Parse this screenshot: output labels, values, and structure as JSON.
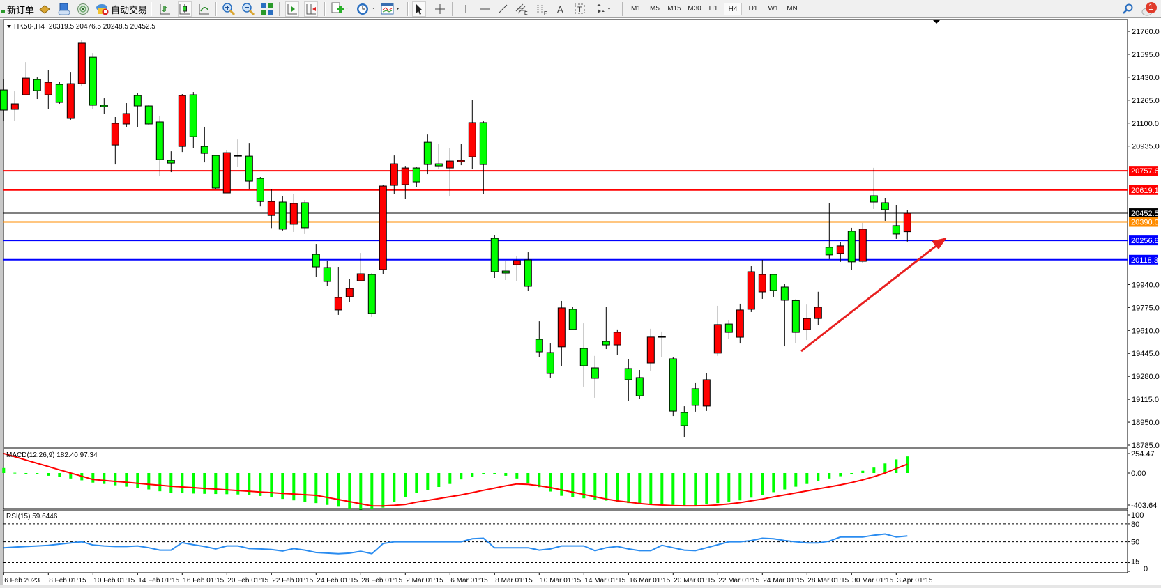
{
  "toolbar": {
    "new_order_label": "新订单",
    "auto_trading_label": "自动交易",
    "timeframes": [
      "M1",
      "M5",
      "M15",
      "M30",
      "H1",
      "H4",
      "D1",
      "W1",
      "MN"
    ],
    "active_timeframe": "H4",
    "notification_count": "1",
    "icons": [
      "new-order-icon",
      "market-watch-icon",
      "data-window-icon",
      "signals-icon",
      "auto-trading-icon",
      "bar-chart-icon",
      "candlestick-icon",
      "line-chart-icon",
      "zoom-in-icon",
      "zoom-out-icon",
      "tile-windows-icon",
      "auto-scroll-icon",
      "chart-shift-icon",
      "indicators-icon",
      "periods-icon",
      "templates-icon",
      "cursor-icon",
      "crosshair-icon",
      "vertical-line-icon",
      "horizontal-line-icon",
      "trendline-icon",
      "equidistant-channel-icon",
      "fibonacci-icon",
      "text-icon",
      "text-label-icon",
      "arrows-icon",
      "search-icon",
      "chat-icon"
    ]
  },
  "chart": {
    "symbol_header": "HK50-,H4",
    "ohlc_header": "20319.5 20476.5 20248.5 20452.5",
    "price_ticks": [
      "21760.0",
      "21595.0",
      "21430.0",
      "21265.0",
      "21100.0",
      "20935.0",
      "19940.0",
      "19775.0",
      "19610.0",
      "19445.0",
      "19280.0",
      "19115.0",
      "18950.0",
      "18785.0"
    ],
    "levels": [
      {
        "value": "20757.6",
        "color": "#ff0000"
      },
      {
        "value": "20619.1",
        "color": "#ff0000"
      },
      {
        "value": "20452.5",
        "color": "#000000"
      },
      {
        "value": "20390.0",
        "color": "#ff8c00"
      },
      {
        "value": "20256.8",
        "color": "#0000ff"
      },
      {
        "value": "20118.3",
        "color": "#0000ff"
      }
    ],
    "bull_color": "#ff0000",
    "bear_color": "#00ff00",
    "arrow_color": "#e82020"
  },
  "macd": {
    "label": "MACD(12,26,9) 182.40 97.34",
    "ticks": [
      "254.47",
      "0.00",
      "-403.64"
    ],
    "bar_color": "#00ff00",
    "signal_color": "#ff0000"
  },
  "rsi": {
    "label": "RSI(15) 59.6446",
    "ticks": [
      "100",
      "80",
      "50",
      "15",
      "0"
    ],
    "line_color": "#2a8cf0"
  },
  "date_labels": [
    "6 Feb 2023",
    "8 Feb 01:15",
    "10 Feb 01:15",
    "14 Feb 01:15",
    "16 Feb 01:15",
    "20 Feb 01:15",
    "22 Feb 01:15",
    "24 Feb 01:15",
    "28 Feb 01:15",
    "2 Mar 01:15",
    "6 Mar 01:15",
    "8 Mar 01:15",
    "10 Mar 01:15",
    "14 Mar 01:15",
    "16 Mar 01:15",
    "20 Mar 01:15",
    "22 Mar 01:15",
    "24 Mar 01:15",
    "28 Mar 01:15",
    "30 Mar 01:15",
    "3 Apr 01:15"
  ],
  "chart_data": {
    "type": "candlestick",
    "symbol": "HK50-",
    "timeframe": "H4",
    "ylim": [
      18785,
      21760
    ],
    "candles_ohlc": [
      [
        21339,
        21419,
        21119,
        21194
      ],
      [
        21199,
        21329,
        21119,
        21239
      ],
      [
        21304,
        21539,
        21299,
        21424
      ],
      [
        21414,
        21429,
        21274,
        21334
      ],
      [
        21304,
        21484,
        21204,
        21394
      ],
      [
        21379,
        21399,
        21239,
        21249
      ],
      [
        21134,
        21464,
        21124,
        21384
      ],
      [
        21384,
        21695,
        21364,
        21675
      ],
      [
        21574,
        21604,
        21204,
        21229
      ],
      [
        21229,
        21279,
        21164,
        21219
      ],
      [
        20943,
        21144,
        20803,
        21099
      ],
      [
        21094,
        21244,
        21069,
        21169
      ],
      [
        21299,
        21319,
        21069,
        21224
      ],
      [
        21224,
        21229,
        21084,
        21094
      ],
      [
        21109,
        21149,
        20723,
        20838
      ],
      [
        20833,
        20898,
        20748,
        20813
      ],
      [
        20933,
        21309,
        20893,
        21299
      ],
      [
        21304,
        21324,
        20923,
        21003
      ],
      [
        20933,
        21074,
        20818,
        20883
      ],
      [
        20868,
        20873,
        20623,
        20633
      ],
      [
        20598,
        20908,
        20598,
        20888
      ],
      [
        20868,
        20983,
        20788,
        20868
      ],
      [
        20863,
        20958,
        20623,
        20683
      ],
      [
        20703,
        20713,
        20502,
        20537
      ],
      [
        20437,
        20628,
        20346,
        20537
      ],
      [
        20533,
        20578,
        20328,
        20338
      ],
      [
        20373,
        20593,
        20318,
        20523
      ],
      [
        20528,
        20548,
        20303,
        20348
      ],
      [
        20157,
        20232,
        19997,
        20067
      ],
      [
        20062,
        20112,
        19932,
        19962
      ],
      [
        19757,
        20067,
        19722,
        19847
      ],
      [
        19852,
        19977,
        19812,
        19912
      ],
      [
        19967,
        20167,
        19962,
        20017
      ],
      [
        20012,
        20022,
        19707,
        19732
      ],
      [
        20047,
        20658,
        20017,
        20648
      ],
      [
        20653,
        20868,
        20588,
        20808
      ],
      [
        20658,
        20793,
        20553,
        20778
      ],
      [
        20778,
        20783,
        20643,
        20678
      ],
      [
        20963,
        21018,
        20733,
        20803
      ],
      [
        20808,
        20953,
        20768,
        20793
      ],
      [
        20778,
        20923,
        20573,
        20828
      ],
      [
        20823,
        20953,
        20798,
        20833
      ],
      [
        20858,
        21268,
        20768,
        21104
      ],
      [
        21104,
        21118,
        20588,
        20803
      ],
      [
        20272,
        20297,
        19987,
        20032
      ],
      [
        20037,
        20112,
        19972,
        20022
      ],
      [
        20082,
        20142,
        19962,
        20112
      ],
      [
        20117,
        20172,
        19892,
        19927
      ],
      [
        19546,
        19676,
        19416,
        19456
      ],
      [
        19451,
        19516,
        19271,
        19301
      ],
      [
        19492,
        19822,
        19356,
        19772
      ],
      [
        19762,
        19777,
        19612,
        19617
      ],
      [
        19481,
        19661,
        19206,
        19356
      ],
      [
        19341,
        19427,
        19126,
        19266
      ],
      [
        19531,
        19777,
        19476,
        19506
      ],
      [
        19506,
        19617,
        19436,
        19597
      ],
      [
        19336,
        19401,
        19101,
        19256
      ],
      [
        19271,
        19326,
        19120,
        19140
      ],
      [
        19376,
        19622,
        19316,
        19562
      ],
      [
        19566,
        19602,
        19416,
        19566
      ],
      [
        19406,
        19421,
        18995,
        19030
      ],
      [
        19020,
        19065,
        18845,
        18925
      ],
      [
        19191,
        19231,
        19026,
        19071
      ],
      [
        19066,
        19301,
        19031,
        19256
      ],
      [
        19447,
        19787,
        19427,
        19652
      ],
      [
        19656,
        19682,
        19551,
        19596
      ],
      [
        19561,
        19802,
        19516,
        19757
      ],
      [
        19762,
        20072,
        19742,
        20032
      ],
      [
        19887,
        20117,
        19837,
        20012
      ],
      [
        20012,
        20017,
        19852,
        19897
      ],
      [
        19922,
        19942,
        19496,
        19827
      ],
      [
        19825,
        19835,
        19521,
        19596
      ],
      [
        19616,
        19796,
        19541,
        19696
      ],
      [
        19696,
        19888,
        19651,
        19777
      ],
      [
        20208,
        20528,
        20123,
        20153
      ],
      [
        20163,
        20243,
        20103,
        20218
      ],
      [
        20323,
        20348,
        20043,
        20103
      ],
      [
        20107,
        20383,
        20097,
        20338
      ],
      [
        20578,
        20779,
        20483,
        20533
      ],
      [
        20528,
        20563,
        20398,
        20478
      ],
      [
        20363,
        20513,
        20268,
        20303
      ],
      [
        20319.5,
        20476.5,
        20248.5,
        20452.5
      ]
    ],
    "macd_histogram": [
      55,
      3,
      -5,
      -15,
      -30,
      -45,
      -60,
      -80,
      -105,
      -120,
      -135,
      -150,
      -165,
      -180,
      -200,
      -220,
      -222,
      -225,
      -228,
      -230,
      -232,
      -235,
      -237,
      -252,
      -268,
      -284,
      -300,
      -315,
      -330,
      -350,
      -370,
      -390,
      -403.64,
      -395,
      -380,
      -320,
      -260,
      -218,
      -185,
      -153,
      -120,
      -70,
      -40,
      -10,
      -5,
      -30,
      -60,
      -108,
      -155,
      -203,
      -250,
      -263,
      -277,
      -290,
      -303,
      -317,
      -330,
      -335,
      -340,
      -345,
      -350,
      -355,
      -360,
      -345,
      -330,
      -315,
      -300,
      -270,
      -240,
      -210,
      -180,
      -150,
      -120,
      -90,
      -60,
      -35,
      -10,
      25,
      60,
      105,
      150,
      182.4
    ],
    "macd_signal": [
      215,
      179,
      143,
      107,
      71,
      35,
      0,
      -35,
      -70,
      -81,
      -92,
      -102,
      -113,
      -124,
      -134,
      -145,
      -153,
      -161,
      -169,
      -176,
      -184,
      -192,
      -200,
      -208,
      -215,
      -223,
      -230,
      -238,
      -245,
      -268,
      -291,
      -314,
      -337,
      -360,
      -362,
      -355,
      -345,
      -320,
      -300,
      -280,
      -260,
      -240,
      -215,
      -190,
      -165,
      -140,
      -120,
      -125,
      -140,
      -160,
      -185,
      -210,
      -235,
      -260,
      -285,
      -305,
      -320,
      -335,
      -345,
      -352,
      -358,
      -360,
      -360,
      -358,
      -350,
      -340,
      -325,
      -305,
      -285,
      -262,
      -240,
      -218,
      -196,
      -174,
      -152,
      -130,
      -105,
      -75,
      -40,
      0,
      50,
      97.34
    ],
    "macd_range": [
      -403.64,
      254.47
    ],
    "rsi": [
      40,
      41,
      42,
      43,
      44,
      46,
      48,
      50,
      44.5,
      43,
      42,
      42,
      43,
      40,
      36,
      36,
      48.5,
      45,
      42,
      38,
      43,
      43,
      38.5,
      38,
      37,
      34.6,
      38.5,
      36,
      32,
      31,
      30,
      31,
      34,
      30,
      47,
      50,
      50,
      50,
      50,
      50,
      50,
      50,
      55,
      56,
      40,
      40,
      40,
      40,
      36,
      38,
      43,
      43,
      43,
      35,
      40,
      42,
      38,
      35,
      35,
      44,
      40,
      36,
      35,
      40,
      45,
      50,
      50,
      52,
      56,
      55,
      52,
      50,
      48,
      48,
      51,
      58,
      58,
      58,
      61,
      63,
      58,
      59.6446
    ],
    "rsi_levels": [
      80,
      50,
      15
    ],
    "rsi_range": [
      0,
      100
    ]
  }
}
